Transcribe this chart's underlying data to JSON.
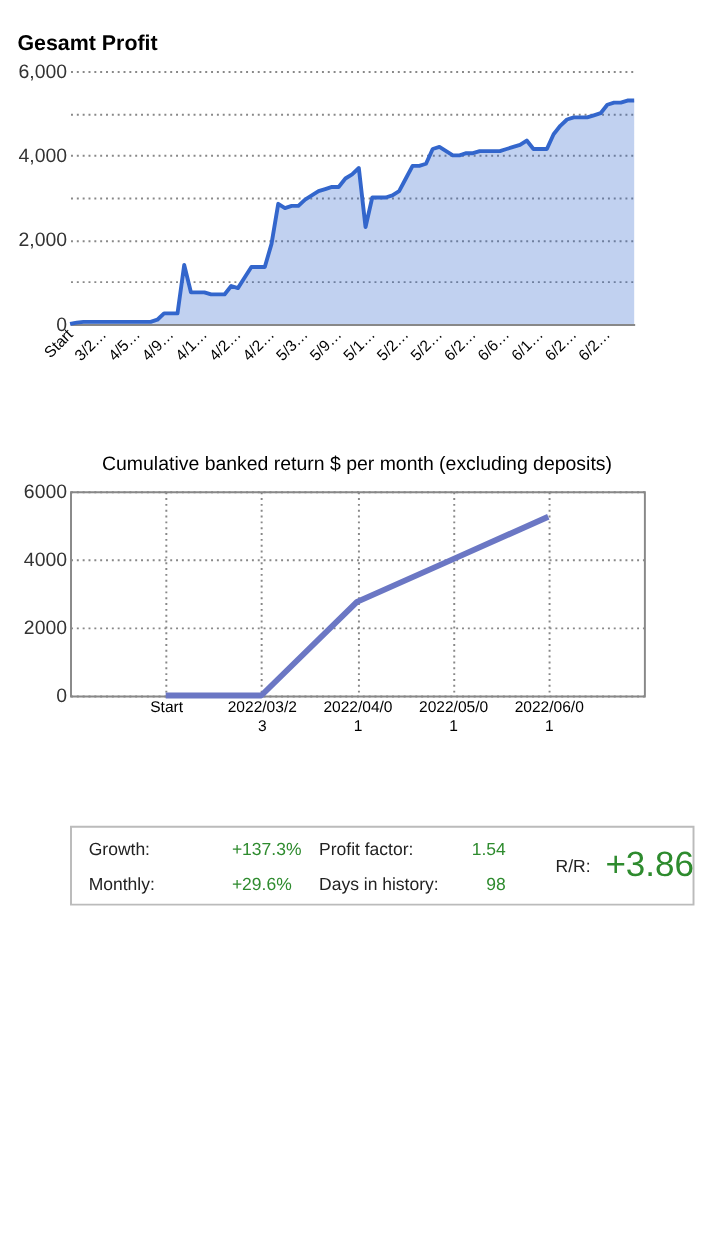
{
  "chart_data": [
    {
      "type": "area",
      "title": "Gesamt Profit",
      "categories": [
        "Start",
        null,
        null,
        null,
        null,
        "3/2…",
        null,
        null,
        null,
        null,
        "4/5…",
        null,
        null,
        null,
        null,
        "4/9…",
        null,
        null,
        null,
        null,
        "4/1…",
        null,
        null,
        null,
        null,
        "4/2…",
        null,
        null,
        null,
        null,
        "4/2…",
        null,
        null,
        null,
        null,
        "5/3…",
        null,
        null,
        null,
        null,
        "5/9…",
        null,
        null,
        null,
        null,
        "5/1…",
        null,
        null,
        null,
        null,
        "5/2…",
        null,
        null,
        null,
        null,
        "5/2…",
        null,
        null,
        null,
        null,
        "6/2…",
        null,
        null,
        null,
        null,
        "6/6…",
        null,
        null,
        null,
        null,
        "6/1…",
        null,
        null,
        null,
        null,
        "6/2…",
        null,
        null,
        null,
        null,
        "6/2…",
        null,
        null,
        null,
        null
      ],
      "series": [
        {
          "color": "#3366cc",
          "values": [
            0,
            30,
            50,
            50,
            50,
            50,
            50,
            50,
            50,
            50,
            50,
            50,
            50,
            100,
            250,
            250,
            250,
            1400,
            750,
            750,
            750,
            700,
            700,
            700,
            900,
            850,
            1100,
            1350,
            1350,
            1350,
            1900,
            2850,
            2750,
            2800,
            2800,
            2950,
            3050,
            3150,
            3200,
            3250,
            3250,
            3450,
            3550,
            3700,
            2300,
            3000,
            3000,
            3000,
            3050,
            3150,
            3450,
            3750,
            3750,
            3800,
            4150,
            4200,
            4100,
            4000,
            4000,
            4050,
            4050,
            4100,
            4100,
            4100,
            4100,
            4150,
            4200,
            4250,
            4350,
            4150,
            4150,
            4150,
            4500,
            4700,
            4850,
            4900,
            4900,
            4900,
            4950,
            5000,
            5200,
            5250,
            5250,
            5300,
            5300
          ]
        }
      ],
      "ylim": [
        0,
        6000
      ],
      "yticks": [
        0,
        {
          "value": 1000,
          "label": null
        },
        {
          "value": 2000,
          "label": "2,000"
        },
        {
          "value": 3000,
          "label": null
        },
        {
          "value": 4000,
          "label": "4,000"
        },
        {
          "value": 5000,
          "label": null
        },
        {
          "value": 6000,
          "label": "6,000"
        }
      ],
      "grid": "y"
    },
    {
      "type": "line",
      "title": "Cumulative banked return $ per month (excluding deposits)",
      "categories": [
        "Start",
        "2022/03/23",
        "2022/04/01",
        "2022/05/01",
        "2022/06/01"
      ],
      "series": [
        {
          "color": "#6b77c4",
          "values": [
            0,
            0,
            2750,
            4000,
            5250
          ]
        }
      ],
      "ylim": [
        0,
        6000
      ],
      "yticks": [
        0,
        2000,
        4000,
        6000
      ],
      "grid": true,
      "line_style": "solid",
      "marker": "none"
    },
    {
      "type": "other",
      "annotations": [
        "Growth:",
        "+137.3%",
        "Monthly:",
        "+29.6%",
        "Profit factor:",
        "1.54",
        "Days in history:",
        "98",
        "R/R:",
        "+3.86"
      ]
    }
  ]
}
